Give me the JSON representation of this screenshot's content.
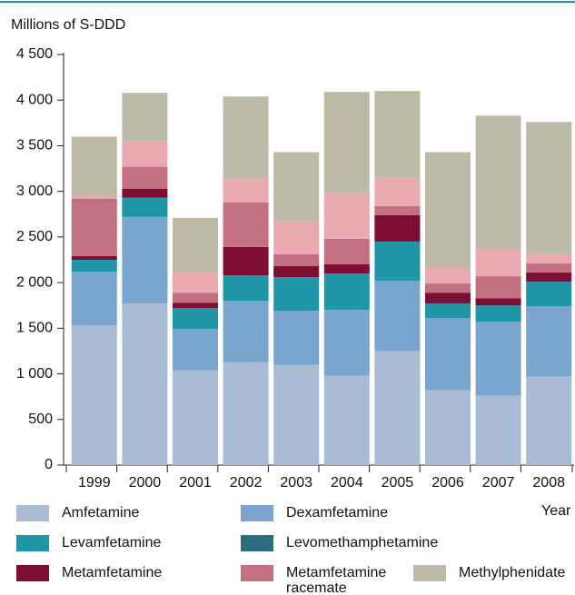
{
  "chart_data": {
    "type": "stacked_bar",
    "y_label": "Millions of S-DDD",
    "x_label": "Year",
    "categories": [
      "1999",
      "2000",
      "2001",
      "2002",
      "2003",
      "2004",
      "2005",
      "2006",
      "2007",
      "2008"
    ],
    "series": [
      {
        "name": "Amfetamine",
        "color": "#a9bcd3",
        "values": [
          1530,
          1770,
          1040,
          1130,
          1100,
          980,
          1250,
          820,
          760,
          970
        ]
      },
      {
        "name": "Dexamfetamine",
        "color": "#7aa5cf",
        "values": [
          590,
          950,
          450,
          670,
          590,
          720,
          770,
          790,
          810,
          770
        ]
      },
      {
        "name": "Levamfetamine",
        "color": "#1e96a8",
        "values": [
          130,
          210,
          230,
          280,
          370,
          400,
          430,
          160,
          180,
          270
        ]
      },
      {
        "name": "Levomethamphetamine",
        "color": "#2c6e80",
        "values": [
          0,
          0,
          0,
          0,
          0,
          0,
          0,
          0,
          0,
          0
        ]
      },
      {
        "name": "Metamfetamine",
        "color": "#7d0d33",
        "values": [
          40,
          100,
          60,
          310,
          120,
          100,
          290,
          120,
          80,
          100
        ]
      },
      {
        "name": "Metamfetamine racemate",
        "color": "#c47083",
        "values": [
          630,
          240,
          110,
          490,
          130,
          280,
          100,
          100,
          240,
          100
        ]
      },
      {
        "color": "#e8aab0",
        "values": [
          40,
          280,
          220,
          250,
          360,
          500,
          310,
          180,
          300,
          110
        ]
      },
      {
        "name": "Methylphenidate",
        "color": "#bcbaa6",
        "values": [
          640,
          530,
          600,
          910,
          760,
          1110,
          950,
          1260,
          1460,
          1440
        ]
      }
    ],
    "ylim": [
      0,
      4500
    ],
    "yticks": [
      0,
      500,
      {
        "value": 1000,
        "label": "1 000"
      },
      {
        "value": 1500,
        "label": "1 500"
      },
      {
        "value": 2000,
        "label": "2 000"
      },
      {
        "value": 2500,
        "label": "2 500"
      },
      {
        "value": 3000,
        "label": "3 000"
      },
      {
        "value": 3500,
        "label": "3 500"
      },
      {
        "value": 4000,
        "label": "4 000"
      },
      {
        "value": 4500,
        "label": "4 500"
      }
    ]
  }
}
